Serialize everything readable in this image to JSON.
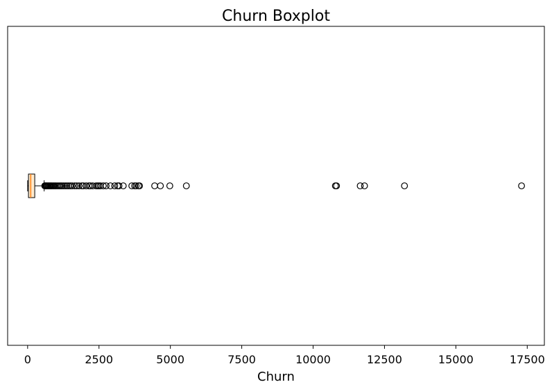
{
  "chart_data": {
    "type": "boxplot",
    "orientation": "horizontal",
    "title": "Churn Boxplot",
    "xlabel": "Churn",
    "ylabel": "",
    "xlim": [
      -700,
      18100
    ],
    "x_ticks": [
      0,
      2500,
      5000,
      7500,
      10000,
      12500,
      15000,
      17500
    ],
    "x_tick_labels": [
      "0",
      "2500",
      "5000",
      "7500",
      "10000",
      "12500",
      "15000",
      "17500"
    ],
    "grid": false,
    "box": {
      "whisker_low": 0,
      "q1": 30,
      "median": 110,
      "q3": 250,
      "whisker_high": 580
    },
    "outliers": [
      600,
      620,
      640,
      660,
      690,
      720,
      750,
      780,
      810,
      840,
      880,
      920,
      960,
      1000,
      1050,
      1100,
      1150,
      1200,
      1260,
      1320,
      1380,
      1440,
      1500,
      1560,
      1650,
      1720,
      1800,
      1900,
      1950,
      2050,
      2150,
      2200,
      2280,
      2400,
      2450,
      2500,
      2550,
      2650,
      2750,
      2900,
      3050,
      3150,
      3200,
      3350,
      3650,
      3750,
      3800,
      3880,
      3920,
      4450,
      4650,
      4980,
      5560,
      10780,
      10820,
      11650,
      11800,
      13200,
      17300
    ],
    "colors": {
      "box_fill": "#fde9cc",
      "median": "#ff7f0e",
      "lines": "#000000"
    }
  }
}
